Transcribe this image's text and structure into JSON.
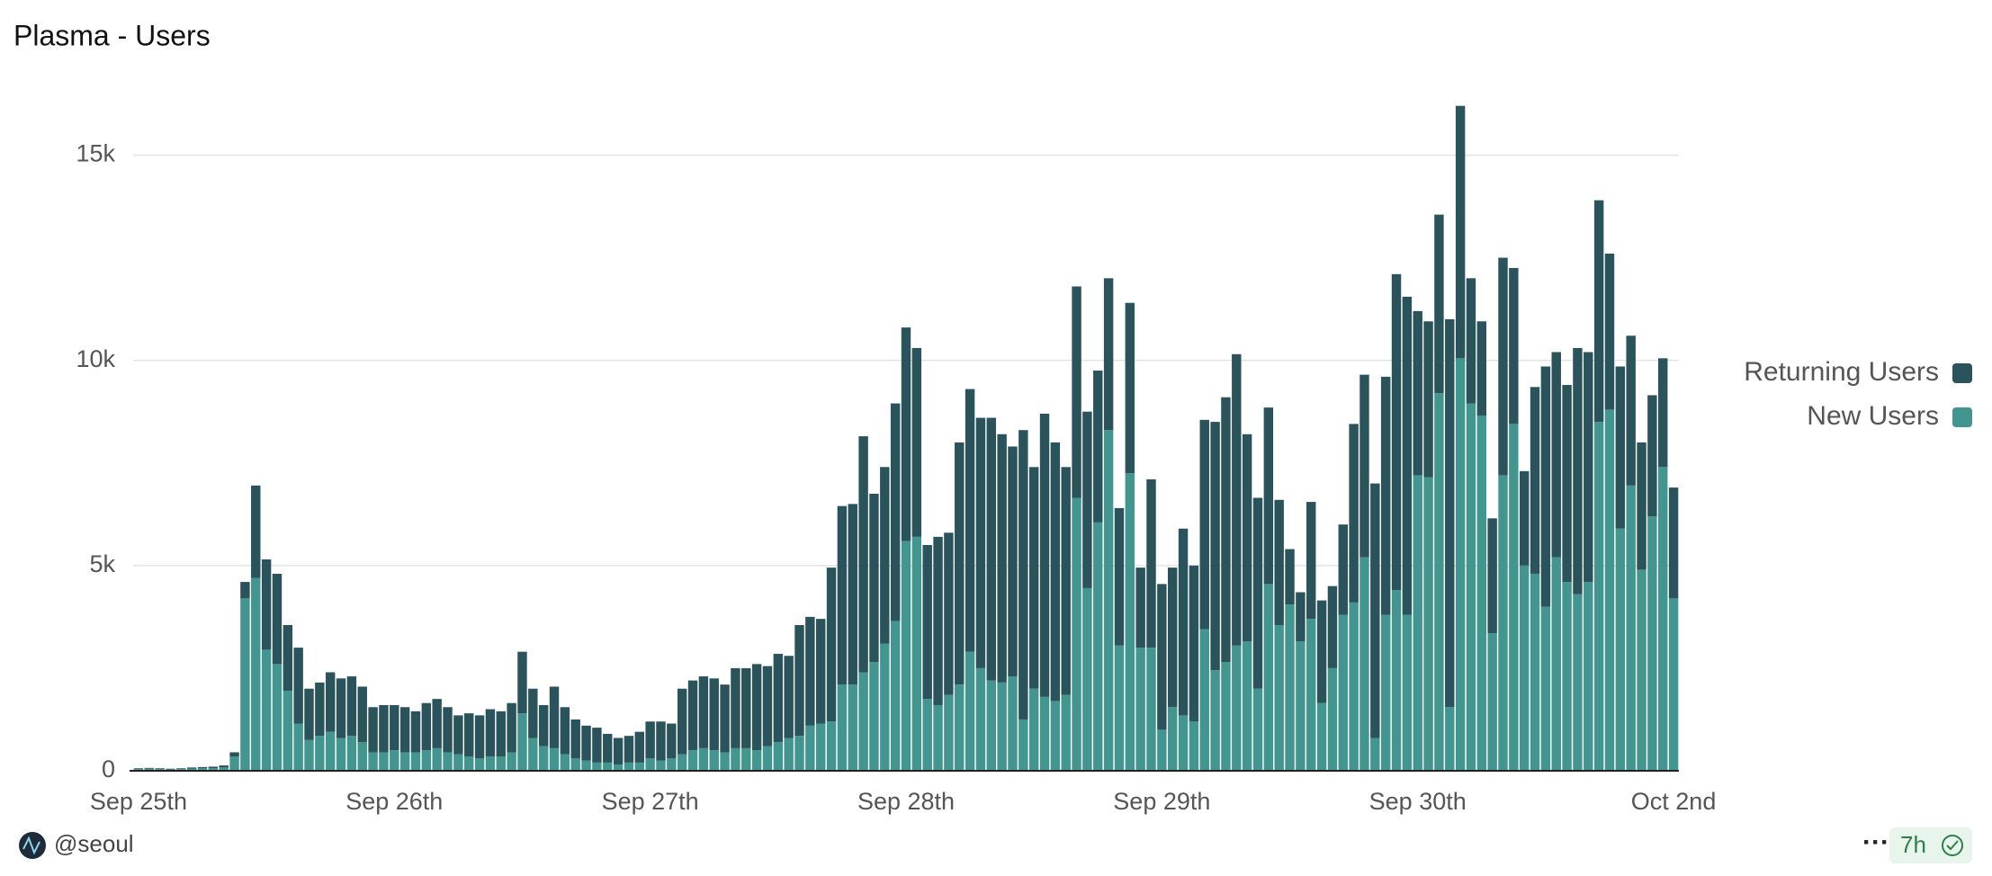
{
  "chart_data": {
    "type": "bar",
    "stacked": true,
    "title": "Plasma - Users",
    "categories": [
      "Sep 25th",
      null,
      null,
      null,
      null,
      null,
      null,
      null,
      null,
      null,
      null,
      null,
      null,
      null,
      null,
      null,
      null,
      null,
      null,
      null,
      null,
      null,
      null,
      null,
      "Sep 26th",
      null,
      null,
      null,
      null,
      null,
      null,
      null,
      null,
      null,
      null,
      null,
      null,
      null,
      null,
      null,
      null,
      null,
      null,
      null,
      null,
      null,
      null,
      null,
      "Sep 27th",
      null,
      null,
      null,
      null,
      null,
      null,
      null,
      null,
      null,
      null,
      null,
      null,
      null,
      null,
      null,
      null,
      null,
      null,
      null,
      null,
      null,
      null,
      null,
      "Sep 28th",
      null,
      null,
      null,
      null,
      null,
      null,
      null,
      null,
      null,
      null,
      null,
      null,
      null,
      null,
      null,
      null,
      null,
      null,
      null,
      null,
      null,
      null,
      null,
      "Sep 29th",
      null,
      null,
      null,
      null,
      null,
      null,
      null,
      null,
      null,
      null,
      null,
      null,
      null,
      null,
      null,
      null,
      null,
      null,
      null,
      null,
      null,
      null,
      null,
      "Sep 30th",
      null,
      null,
      null,
      null,
      null,
      null,
      null,
      null,
      null,
      null,
      null,
      null,
      null,
      null,
      null,
      null,
      null,
      null,
      null,
      null,
      null,
      null,
      null,
      "Oct 2nd"
    ],
    "series": [
      {
        "name": "New Users",
        "color": "#439590",
        "values": [
          40,
          50,
          40,
          30,
          40,
          50,
          60,
          60,
          80,
          350,
          4200,
          4700,
          2950,
          2600,
          1950,
          1150,
          750,
          850,
          950,
          800,
          850,
          700,
          450,
          450,
          500,
          450,
          450,
          500,
          550,
          450,
          400,
          350,
          300,
          350,
          350,
          450,
          1400,
          800,
          600,
          550,
          400,
          300,
          250,
          200,
          200,
          150,
          200,
          200,
          300,
          250,
          300,
          400,
          500,
          550,
          500,
          450,
          550,
          550,
          500,
          600,
          700,
          800,
          850,
          1100,
          1150,
          1200,
          2100,
          2100,
          2400,
          2650,
          3100,
          3650,
          5600,
          5700,
          1750,
          1600,
          1850,
          2100,
          2900,
          2500,
          2200,
          2150,
          2300,
          1250,
          2000,
          1800,
          1700,
          1850,
          6650,
          4450,
          6050,
          8300,
          3050,
          7250,
          3000,
          3000,
          1000,
          1550,
          1350,
          1200,
          3450,
          2450,
          2650,
          3050,
          3150,
          2000,
          4550,
          3550,
          4050,
          3150,
          3700,
          1650,
          2500,
          3800,
          4100,
          5200,
          800,
          3800,
          4400,
          3800,
          7200,
          7150,
          9200,
          1550,
          10050,
          8950,
          8650,
          3350,
          7200,
          8450,
          5000,
          4800,
          4000,
          5200,
          4600,
          4300,
          4600,
          8500,
          8800,
          5900,
          6950,
          4900,
          6200,
          7400,
          4200
        ]
      },
      {
        "name": "Returning Users",
        "color": "#2a535b",
        "values": [
          20,
          20,
          20,
          20,
          20,
          30,
          30,
          40,
          50,
          100,
          400,
          2250,
          2200,
          2200,
          1600,
          1850,
          1250,
          1300,
          1450,
          1450,
          1450,
          1350,
          1100,
          1150,
          1100,
          1100,
          1000,
          1150,
          1200,
          1100,
          950,
          1050,
          1050,
          1150,
          1100,
          1200,
          1500,
          1200,
          1000,
          1500,
          1150,
          950,
          850,
          850,
          700,
          650,
          650,
          750,
          900,
          950,
          850,
          1600,
          1700,
          1750,
          1750,
          1650,
          1950,
          1950,
          2100,
          1950,
          2150,
          2000,
          2700,
          2650,
          2550,
          3750,
          4350,
          4400,
          5750,
          4100,
          4300,
          5300,
          5200,
          4600,
          3750,
          4100,
          3950,
          5900,
          6400,
          6100,
          6400,
          6050,
          5600,
          7050,
          5400,
          6900,
          6300,
          5550,
          5150,
          4300,
          3700,
          3700,
          3350,
          4150,
          1950,
          4100,
          3550,
          3400,
          4550,
          3800,
          5100,
          6050,
          6450,
          7100,
          5050,
          4650,
          4300,
          3050,
          1350,
          1200,
          2850,
          2500,
          2000,
          2200,
          4350,
          4450,
          6200,
          5800,
          7700,
          7750,
          4000,
          3800,
          4350,
          9450,
          6150,
          3050,
          2300,
          2800,
          5300,
          3800,
          2300,
          4550,
          5850,
          5000,
          4800,
          6000,
          5600,
          5400,
          3800,
          3950,
          3650,
          3100,
          2950,
          2650,
          2700
        ]
      }
    ],
    "legend_order": [
      1,
      0
    ],
    "ylim": [
      0,
      16500
    ],
    "yticks": [
      0,
      {
        "value": 5000,
        "label": "5k"
      },
      {
        "value": 10000,
        "label": "10k"
      },
      {
        "value": 15000,
        "label": "15k"
      }
    ],
    "grid": true,
    "legend": "right",
    "footer": {
      "user": "@seoul",
      "age": "7h"
    }
  }
}
